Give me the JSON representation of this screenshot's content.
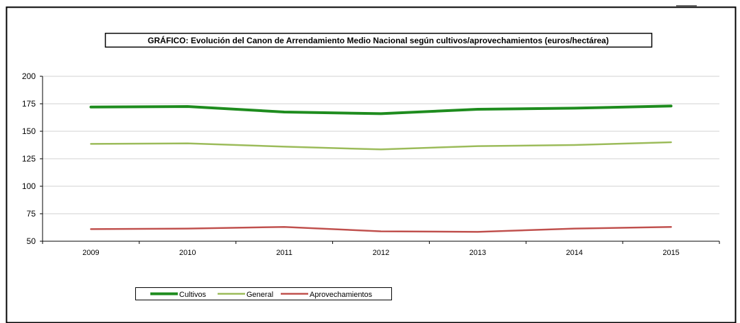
{
  "chart_data": {
    "type": "line",
    "title": "GRÁFICO: Evolución del Canon de Arrendamiento Medio Nacional según cultivos/aprovechamientos (euros/hectárea)",
    "xlabel": "",
    "ylabel": "",
    "categories": [
      "2009",
      "2010",
      "2011",
      "2012",
      "2013",
      "2014",
      "2015"
    ],
    "ylim": [
      50,
      200
    ],
    "yticks": [
      50,
      75,
      100,
      125,
      150,
      175,
      200
    ],
    "grid": true,
    "legend_position": "bottom-left",
    "series": [
      {
        "name": "Cultivos",
        "color": "#1e8c1e",
        "values": [
          172,
          172.5,
          167.5,
          166,
          170,
          171,
          173
        ]
      },
      {
        "name": "General",
        "color": "#9bbb59",
        "values": [
          138.5,
          139,
          136,
          133.5,
          136.5,
          137.5,
          140
        ]
      },
      {
        "name": "Aprovechamientos",
        "color": "#c0504d",
        "values": [
          61,
          61.5,
          63,
          59,
          58.5,
          61.5,
          63
        ]
      }
    ]
  }
}
